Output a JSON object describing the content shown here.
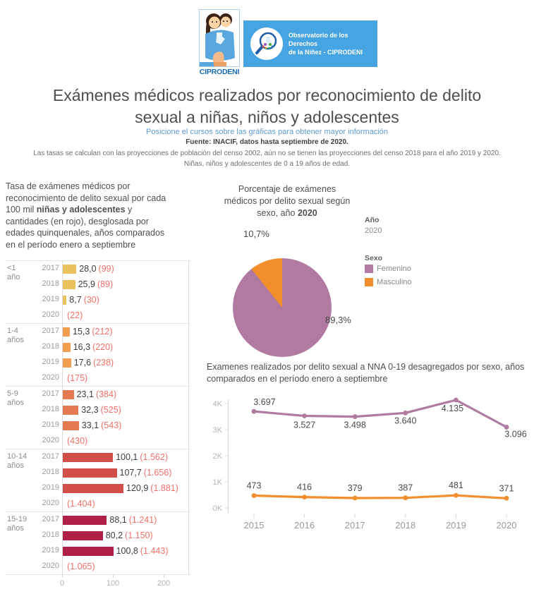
{
  "header": {
    "logo_caption": "CIPRODENI",
    "banner_line1": "Observatorio de los Derechos",
    "banner_line2": "de la Niñez - CIPRODENI"
  },
  "intro": {
    "title": "Exámenes médicos realizados por reconocimiento de delito sexual a niñas, niños y adolescentes",
    "hint": "Posicione el cursos sobre las gráficas para obtener mayor información",
    "source": "Fuente: INACIF, datos hasta septiembre de 2020.",
    "note1": "Las tasas se calculan con las proyecciones de población del censo 2002, aún no se tienen las proyecciones del censo 2018 para el año 2019 y 2020.",
    "note2": "Niñas, niños y adolescentes de 0 a 19 años de edad."
  },
  "chart_data": [
    {
      "id": "rate-by-age",
      "type": "bar",
      "title_pre": "Tasa de exámenes médicos por reconocimiento de delito sexual por cada 100 mil ",
      "title_bold": "niñas y adolescentes",
      "title_post": " y cantidades (en rojo), desglosada por edades quinquenales, años comparados en el período enero a septiembre",
      "xlim": [
        0,
        250
      ],
      "x_ticks": [
        0,
        100,
        200
      ],
      "groups": [
        {
          "id": "lt1",
          "age_lines": [
            "<1",
            "año"
          ],
          "color": "#e9c25e",
          "rows": [
            {
              "year": "2017",
              "rate": 28.0,
              "count": 99
            },
            {
              "year": "2018",
              "rate": 25.9,
              "count": 89
            },
            {
              "year": "2019",
              "rate": 8.7,
              "count": 30
            },
            {
              "year": "2020",
              "rate": null,
              "count": 22
            }
          ]
        },
        {
          "id": "1-4",
          "age_lines": [
            "1-4",
            "años"
          ],
          "color": "#f59e51",
          "rows": [
            {
              "year": "2017",
              "rate": 15.3,
              "count": 212
            },
            {
              "year": "2018",
              "rate": 16.3,
              "count": 220
            },
            {
              "year": "2019",
              "rate": 17.6,
              "count": 238
            },
            {
              "year": "2020",
              "rate": null,
              "count": 175
            }
          ]
        },
        {
          "id": "5-9",
          "age_lines": [
            "5-9",
            "años"
          ],
          "color": "#e37a52",
          "rows": [
            {
              "year": "2017",
              "rate": 23.1,
              "count": 384
            },
            {
              "year": "2018",
              "rate": 32.3,
              "count": 525
            },
            {
              "year": "2019",
              "rate": 33.1,
              "count": 543
            },
            {
              "year": "2020",
              "rate": null,
              "count": 430
            }
          ]
        },
        {
          "id": "10-14",
          "age_lines": [
            "10-14",
            "años"
          ],
          "color": "#d24e48",
          "rows": [
            {
              "year": "2017",
              "rate": 100.1,
              "count": 1562
            },
            {
              "year": "2018",
              "rate": 107.7,
              "count": 1656
            },
            {
              "year": "2019",
              "rate": 120.9,
              "count": 1881
            },
            {
              "year": "2020",
              "rate": null,
              "count": 1404
            }
          ]
        },
        {
          "id": "15-19",
          "age_lines": [
            "15-19",
            "años"
          ],
          "color": "#b01f45",
          "rows": [
            {
              "year": "2017",
              "rate": 88.1,
              "count": 1241
            },
            {
              "year": "2018",
              "rate": 80.2,
              "count": 1150
            },
            {
              "year": "2019",
              "rate": 100.8,
              "count": 1443
            },
            {
              "year": "2020",
              "rate": null,
              "count": 1065
            }
          ]
        }
      ]
    },
    {
      "id": "sex-share-2020",
      "type": "pie",
      "title_l1": "Porcentaje de exámenes",
      "title_l2": "médicos por delito sexual según",
      "title_l3_pre": "sexo, año ",
      "title_bold": "2020",
      "slices": [
        {
          "label": "Femenino",
          "value": 89.3,
          "display": "89,3%",
          "color": "#b07aa1"
        },
        {
          "label": "Masculino",
          "value": 10.7,
          "display": "10,7%",
          "color": "#f28e2b"
        }
      ],
      "legend": {
        "year_title": "Año",
        "year_value": "2020",
        "sex_title": "Sexo",
        "items": [
          {
            "label": "Femenino",
            "color": "#b07aa1"
          },
          {
            "label": "Masculino",
            "color": "#f28e2b"
          }
        ]
      }
    },
    {
      "id": "exams-by-sex-years",
      "type": "line",
      "title": "Examenes realizados por delito sexual a NNA 0-19 desagregados por sexo, años comparados en el período enero a septiembre",
      "x": [
        "2015",
        "2016",
        "2017",
        "2018",
        "2019",
        "2020"
      ],
      "series": [
        {
          "name": "Femenino",
          "color": "#b07aa1",
          "values": [
            3697,
            3527,
            3498,
            3640,
            4135,
            3096
          ]
        },
        {
          "name": "Masculino",
          "color": "#f28e2b",
          "values": [
            473,
            416,
            379,
            387,
            481,
            371
          ]
        }
      ],
      "y_ticks": [
        "0K",
        "1K",
        "2K",
        "3K",
        "4K"
      ],
      "ylim": [
        0,
        4400
      ]
    }
  ]
}
